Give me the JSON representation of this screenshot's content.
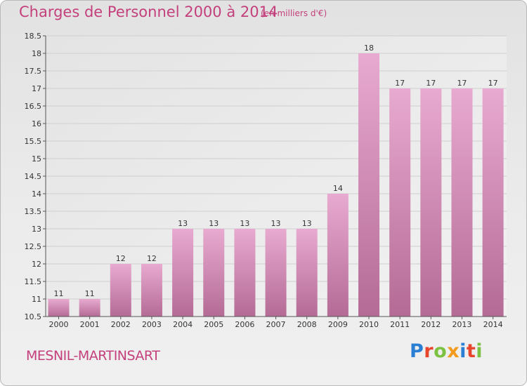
{
  "title": "Charges de Personnel 2000 à 2014",
  "subtitle": "(en milliers d'€)",
  "commune": "MESNIL-MARTINSART",
  "logo": {
    "text": "Proxiti",
    "letter_colors": [
      "#2a7fd4",
      "#e8462c",
      "#7cc242",
      "#f29b1f",
      "#2a7fd4",
      "#e8462c",
      "#7cc242"
    ]
  },
  "colors": {
    "bar_top": "#e8aad0",
    "bar_bottom": "#b46b95",
    "text_accent": "#c4407c"
  },
  "chart_data": {
    "type": "bar",
    "categories": [
      "2000",
      "2001",
      "2002",
      "2003",
      "2004",
      "2005",
      "2006",
      "2007",
      "2008",
      "2009",
      "2010",
      "2011",
      "2012",
      "2013",
      "2014"
    ],
    "values": [
      11,
      11,
      12,
      12,
      13,
      13,
      13,
      13,
      13,
      14,
      18,
      17,
      17,
      17,
      17
    ],
    "data_labels": [
      "11",
      "11",
      "12",
      "12",
      "13",
      "13",
      "13",
      "13",
      "13",
      "14",
      "18",
      "17",
      "17",
      "17",
      "17"
    ],
    "y_ticks": [
      "10.5",
      "11",
      "11.5",
      "12",
      "12.5",
      "13",
      "13.5",
      "14",
      "14.5",
      "15",
      "15.5",
      "16",
      "16.5",
      "17",
      "17.5",
      "18",
      "18.5"
    ],
    "ylim": [
      10.5,
      18.5
    ],
    "grid": true
  }
}
